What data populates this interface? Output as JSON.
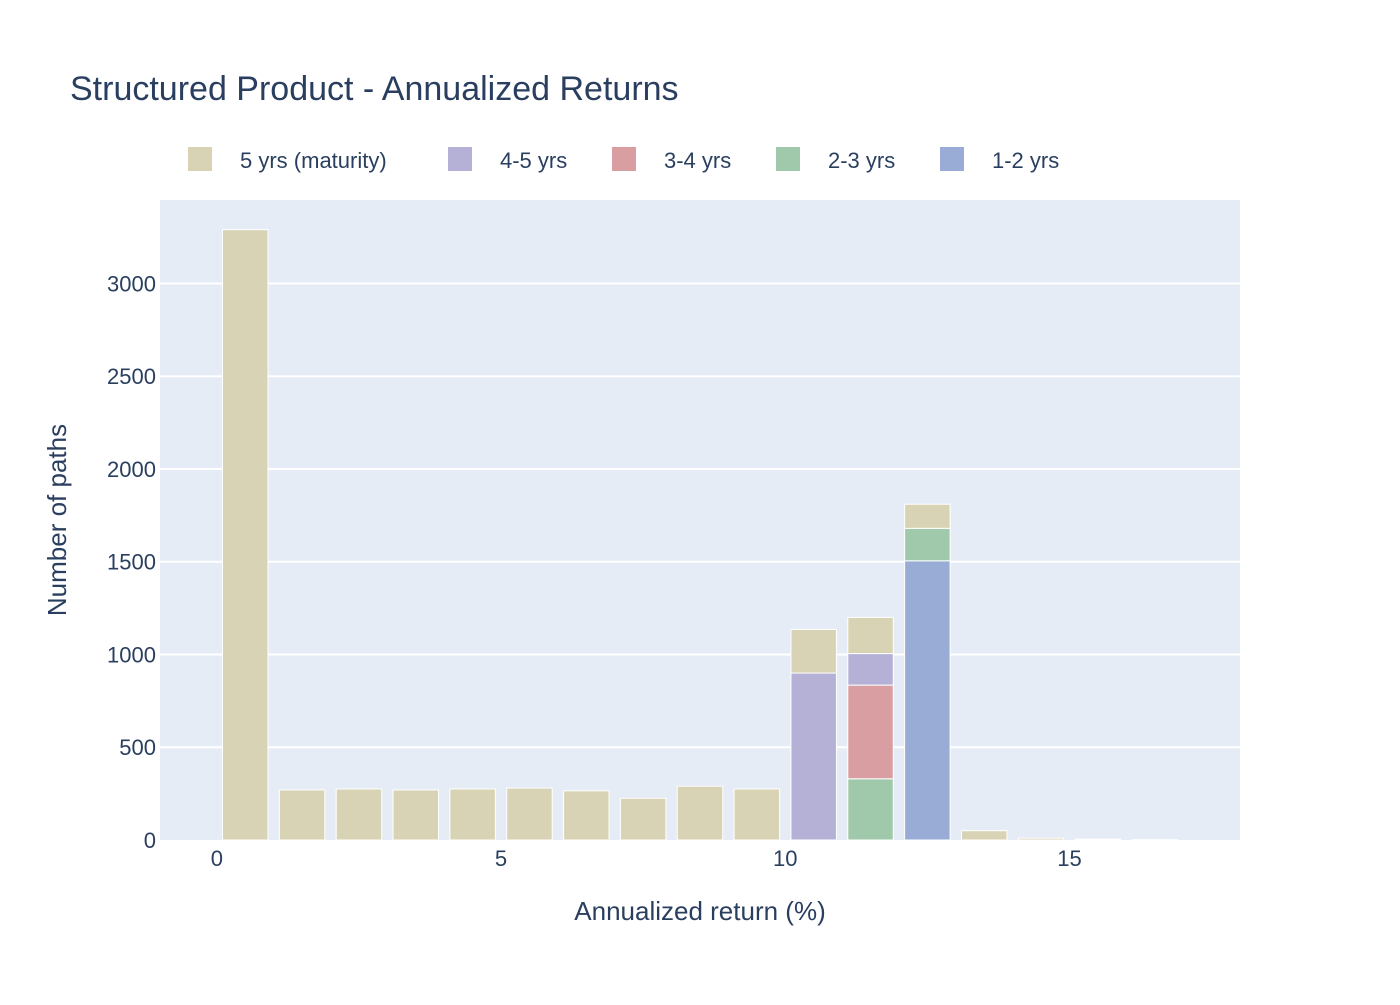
{
  "chart_data": {
    "type": "bar",
    "title": "Structured Product - Annualized Returns",
    "xlabel": "Annualized return (%)",
    "ylabel": "Number of paths",
    "barmode": "stack",
    "xlim": [
      -1,
      18
    ],
    "ylim": [
      0,
      3450
    ],
    "x_ticks": [
      0,
      5,
      10,
      15
    ],
    "y_ticks": [
      0,
      500,
      1000,
      1500,
      2000,
      2500,
      3000
    ],
    "grid": true,
    "legend_position": "top",
    "x": [
      0.5,
      1.5,
      2.5,
      3.5,
      4.5,
      5.5,
      6.5,
      7.5,
      8.5,
      9.5,
      10.5,
      11.5,
      12.5,
      13.5,
      14.5,
      15.5,
      16.5
    ],
    "series": [
      {
        "name": "1-2 yrs",
        "color": "#99acd6",
        "values": [
          0,
          0,
          0,
          0,
          0,
          0,
          0,
          0,
          0,
          0,
          0,
          0,
          1505,
          0,
          0,
          0,
          0
        ]
      },
      {
        "name": "2-3 yrs",
        "color": "#9fc9aa",
        "values": [
          0,
          0,
          0,
          0,
          0,
          0,
          0,
          0,
          0,
          0,
          0,
          330,
          175,
          0,
          0,
          0,
          0
        ]
      },
      {
        "name": "3-4 yrs",
        "color": "#d89ea1",
        "values": [
          0,
          0,
          0,
          0,
          0,
          0,
          0,
          0,
          0,
          0,
          0,
          505,
          0,
          0,
          0,
          0,
          0
        ]
      },
      {
        "name": "4-5 yrs",
        "color": "#b5b0d6",
        "values": [
          0,
          0,
          0,
          0,
          0,
          0,
          0,
          0,
          0,
          0,
          900,
          170,
          0,
          0,
          0,
          0,
          0
        ]
      },
      {
        "name": "5 yrs (maturity)",
        "color": "#d8d3b4",
        "values": [
          3290,
          270,
          275,
          270,
          275,
          280,
          265,
          225,
          290,
          275,
          235,
          195,
          130,
          50,
          10,
          5,
          2
        ]
      }
    ],
    "legend_order": [
      "5 yrs (maturity)",
      "4-5 yrs",
      "3-4 yrs",
      "2-3 yrs",
      "1-2 yrs"
    ]
  }
}
